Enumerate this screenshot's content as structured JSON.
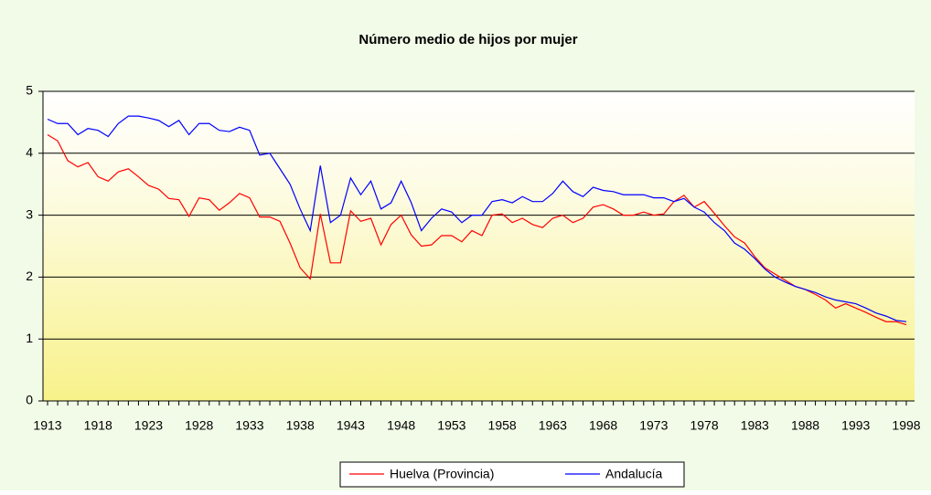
{
  "chart_data": {
    "type": "line",
    "title": "Número medio de hijos por mujer",
    "x": [
      1913,
      1914,
      1915,
      1916,
      1917,
      1918,
      1919,
      1920,
      1921,
      1922,
      1923,
      1924,
      1925,
      1926,
      1927,
      1928,
      1929,
      1930,
      1931,
      1932,
      1933,
      1934,
      1935,
      1936,
      1937,
      1938,
      1939,
      1940,
      1941,
      1942,
      1943,
      1944,
      1945,
      1946,
      1947,
      1948,
      1949,
      1950,
      1951,
      1952,
      1953,
      1954,
      1955,
      1956,
      1957,
      1958,
      1959,
      1960,
      1961,
      1962,
      1963,
      1964,
      1965,
      1966,
      1967,
      1968,
      1969,
      1970,
      1971,
      1972,
      1973,
      1974,
      1975,
      1976,
      1977,
      1978,
      1979,
      1980,
      1981,
      1982,
      1983,
      1984,
      1985,
      1986,
      1987,
      1988,
      1989,
      1990,
      1991,
      1992,
      1993,
      1994,
      1995,
      1996,
      1997,
      1998
    ],
    "series": [
      {
        "name": "Huelva (Provincia)",
        "color": "#ff0000",
        "values": [
          4.3,
          4.2,
          3.88,
          3.78,
          3.85,
          3.62,
          3.55,
          3.7,
          3.75,
          3.62,
          3.48,
          3.42,
          3.27,
          3.25,
          2.98,
          3.28,
          3.25,
          3.08,
          3.2,
          3.35,
          3.28,
          2.97,
          2.97,
          2.9,
          2.55,
          2.15,
          1.97,
          3.02,
          2.23,
          2.23,
          3.07,
          2.9,
          2.95,
          2.52,
          2.85,
          3.0,
          2.68,
          2.5,
          2.52,
          2.67,
          2.67,
          2.57,
          2.75,
          2.67,
          3.0,
          3.02,
          2.88,
          2.95,
          2.85,
          2.8,
          2.95,
          3.0,
          2.88,
          2.95,
          3.13,
          3.17,
          3.1,
          3.0,
          3.0,
          3.05,
          3.0,
          3.02,
          3.22,
          3.32,
          3.13,
          3.22,
          3.03,
          2.83,
          2.65,
          2.55,
          2.33,
          2.15,
          2.05,
          1.95,
          1.85,
          1.8,
          1.72,
          1.63,
          1.5,
          1.57,
          1.5,
          1.43,
          1.35,
          1.28,
          1.28,
          1.23
        ]
      },
      {
        "name": "Andalucía",
        "color": "#0000ff",
        "values": [
          4.55,
          4.48,
          4.48,
          4.3,
          4.4,
          4.37,
          4.27,
          4.48,
          4.6,
          4.6,
          4.57,
          4.53,
          4.43,
          4.53,
          4.3,
          4.48,
          4.48,
          4.37,
          4.35,
          4.42,
          4.37,
          3.97,
          4.0,
          3.75,
          3.5,
          3.1,
          2.75,
          3.8,
          2.88,
          3.0,
          3.6,
          3.33,
          3.55,
          3.1,
          3.2,
          3.55,
          3.2,
          2.75,
          2.95,
          3.1,
          3.05,
          2.88,
          3.0,
          3.0,
          3.22,
          3.25,
          3.2,
          3.3,
          3.22,
          3.22,
          3.35,
          3.55,
          3.38,
          3.3,
          3.45,
          3.4,
          3.38,
          3.33,
          3.33,
          3.33,
          3.28,
          3.28,
          3.22,
          3.27,
          3.13,
          3.05,
          2.88,
          2.75,
          2.55,
          2.45,
          2.3,
          2.13,
          2.0,
          1.92,
          1.85,
          1.8,
          1.75,
          1.68,
          1.63,
          1.6,
          1.57,
          1.5,
          1.42,
          1.37,
          1.3,
          1.28
        ]
      }
    ],
    "xlim": [
      1913,
      1998
    ],
    "xticks": [
      1913,
      1918,
      1923,
      1928,
      1933,
      1938,
      1943,
      1948,
      1953,
      1958,
      1963,
      1968,
      1973,
      1978,
      1983,
      1988,
      1993,
      1998
    ],
    "ylim": [
      0,
      5
    ],
    "yticks": [
      0,
      1,
      2,
      3,
      4,
      5
    ],
    "grid": true,
    "legend": "bottom"
  }
}
